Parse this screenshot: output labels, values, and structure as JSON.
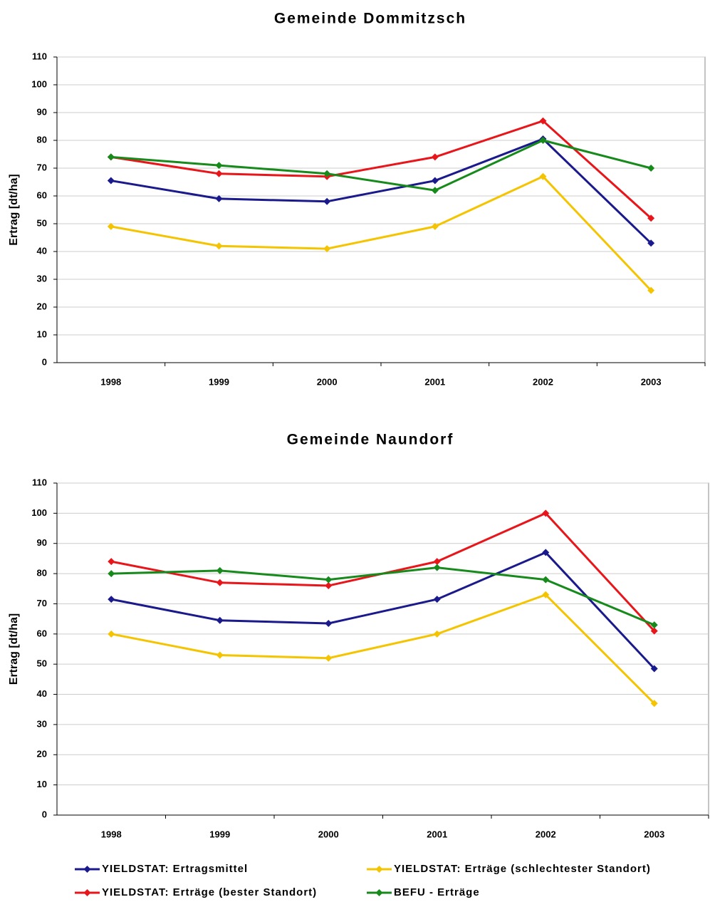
{
  "chart_data": [
    {
      "type": "line",
      "title": "Gemeinde Dommitzsch",
      "y_label": "Ertrag [dt/ha]",
      "categories": [
        "1998",
        "1999",
        "2000",
        "2001",
        "2002",
        "2003"
      ],
      "ylim": [
        0,
        110
      ],
      "yticks": [
        0,
        10,
        20,
        30,
        40,
        50,
        60,
        70,
        80,
        90,
        100,
        110
      ],
      "grid": true,
      "series": [
        {
          "color": "#1a1a8c",
          "values": [
            65.5,
            59,
            58,
            65.5,
            80.5,
            43
          ]
        },
        {
          "color": "#f5c400",
          "values": [
            49,
            42,
            41,
            49,
            67,
            26
          ]
        },
        {
          "color": "#e8161b",
          "values": [
            74,
            68,
            67,
            74,
            87,
            52
          ]
        },
        {
          "color": "#178a1c",
          "values": [
            74,
            71,
            68,
            62,
            80,
            70
          ]
        }
      ]
    },
    {
      "type": "line",
      "title": "Gemeinde Naundorf",
      "y_label": "Ertrag [dt/ha]",
      "categories": [
        "1998",
        "1999",
        "2000",
        "2001",
        "2002",
        "2003"
      ],
      "ylim": [
        0,
        110
      ],
      "yticks": [
        0,
        10,
        20,
        30,
        40,
        50,
        60,
        70,
        80,
        90,
        100,
        110
      ],
      "grid": true,
      "series": [
        {
          "name": "YIELDSTAT: Ertragsmittel",
          "color": "#1a1a8c",
          "values": [
            71.5,
            64.5,
            63.5,
            71.5,
            87,
            48.5
          ]
        },
        {
          "name": "YIELDSTAT: Erträge (schlechtester Standort)",
          "color": "#f5c400",
          "values": [
            60,
            53,
            52,
            60,
            73,
            37
          ]
        },
        {
          "name": "YIELDSTAT: Erträge (bester Standort)",
          "color": "#e8161b",
          "values": [
            84,
            77,
            76,
            84,
            100,
            61
          ]
        },
        {
          "name": "BEFU - Erträge",
          "color": "#178a1c",
          "values": [
            80,
            81,
            78,
            82,
            78,
            63
          ]
        }
      ]
    }
  ]
}
